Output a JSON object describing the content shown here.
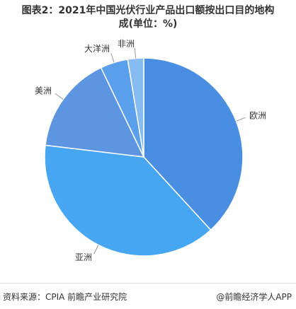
{
  "chart_data": {
    "type": "pie",
    "title": "图表2：2021年中国光伏行业产品出口额按出口目的地构成(单位：%)",
    "categories": [
      "欧洲",
      "亚洲",
      "美洲",
      "大洋洲",
      "非洲"
    ],
    "values": [
      38.2,
      38.7,
      16,
      4.5,
      2.6
    ],
    "colors": [
      "#4a8ee2",
      "#47a6f2",
      "#5c95e0",
      "#5a9fec",
      "#86bcf2"
    ],
    "source": "资料来源：CPIA 前瞻产业研究院",
    "credit": "@前瞻经济学人APP"
  }
}
